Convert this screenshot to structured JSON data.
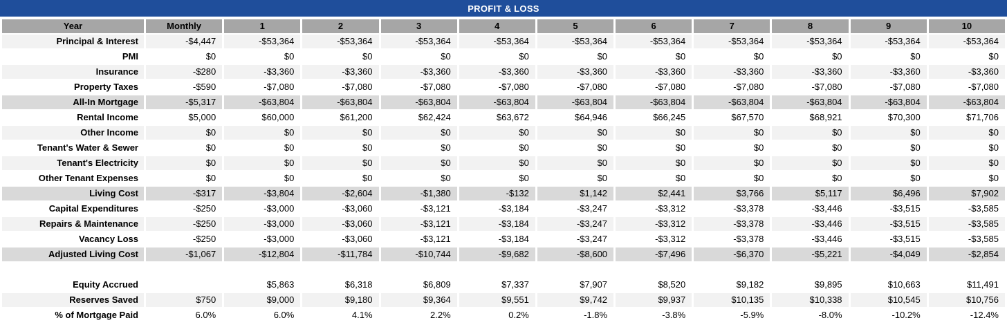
{
  "title": "PROFIT & LOSS",
  "colors": {
    "title_bg": "#1F4E9B",
    "title_text": "#FFFFFF",
    "header_bg": "#A6A6A6",
    "stripe_bg": "#F2F2F2",
    "summary_bg": "#D9D9D9",
    "text": "#000000"
  },
  "table": {
    "columns": [
      "Year",
      "Monthly",
      "1",
      "2",
      "3",
      "4",
      "5",
      "6",
      "7",
      "8",
      "9",
      "10"
    ],
    "rows": [
      {
        "label": "Principal & Interest",
        "style": "light",
        "values": [
          "-$4,447",
          "-$53,364",
          "-$53,364",
          "-$53,364",
          "-$53,364",
          "-$53,364",
          "-$53,364",
          "-$53,364",
          "-$53,364",
          "-$53,364",
          "-$53,364"
        ]
      },
      {
        "label": "PMI",
        "style": "white",
        "values": [
          "$0",
          "$0",
          "$0",
          "$0",
          "$0",
          "$0",
          "$0",
          "$0",
          "$0",
          "$0",
          "$0"
        ]
      },
      {
        "label": "Insurance",
        "style": "light",
        "values": [
          "-$280",
          "-$3,360",
          "-$3,360",
          "-$3,360",
          "-$3,360",
          "-$3,360",
          "-$3,360",
          "-$3,360",
          "-$3,360",
          "-$3,360",
          "-$3,360"
        ]
      },
      {
        "label": "Property Taxes",
        "style": "white",
        "values": [
          "-$590",
          "-$7,080",
          "-$7,080",
          "-$7,080",
          "-$7,080",
          "-$7,080",
          "-$7,080",
          "-$7,080",
          "-$7,080",
          "-$7,080",
          "-$7,080"
        ]
      },
      {
        "label": "All-In Mortgage",
        "style": "dark",
        "values": [
          "-$5,317",
          "-$63,804",
          "-$63,804",
          "-$63,804",
          "-$63,804",
          "-$63,804",
          "-$63,804",
          "-$63,804",
          "-$63,804",
          "-$63,804",
          "-$63,804"
        ]
      },
      {
        "label": "Rental Income",
        "style": "white",
        "values": [
          "$5,000",
          "$60,000",
          "$61,200",
          "$62,424",
          "$63,672",
          "$64,946",
          "$66,245",
          "$67,570",
          "$68,921",
          "$70,300",
          "$71,706"
        ]
      },
      {
        "label": "Other Income",
        "style": "light",
        "values": [
          "$0",
          "$0",
          "$0",
          "$0",
          "$0",
          "$0",
          "$0",
          "$0",
          "$0",
          "$0",
          "$0"
        ]
      },
      {
        "label": "Tenant's Water & Sewer",
        "style": "white",
        "values": [
          "$0",
          "$0",
          "$0",
          "$0",
          "$0",
          "$0",
          "$0",
          "$0",
          "$0",
          "$0",
          "$0"
        ]
      },
      {
        "label": "Tenant's Electricity",
        "style": "light",
        "values": [
          "$0",
          "$0",
          "$0",
          "$0",
          "$0",
          "$0",
          "$0",
          "$0",
          "$0",
          "$0",
          "$0"
        ]
      },
      {
        "label": "Other Tenant Expenses",
        "style": "white",
        "values": [
          "$0",
          "$0",
          "$0",
          "$0",
          "$0",
          "$0",
          "$0",
          "$0",
          "$0",
          "$0",
          "$0"
        ]
      },
      {
        "label": "Living Cost",
        "style": "dark",
        "values": [
          "-$317",
          "-$3,804",
          "-$2,604",
          "-$1,380",
          "-$132",
          "$1,142",
          "$2,441",
          "$3,766",
          "$5,117",
          "$6,496",
          "$7,902"
        ]
      },
      {
        "label": "Capital Expenditures",
        "style": "white",
        "values": [
          "-$250",
          "-$3,000",
          "-$3,060",
          "-$3,121",
          "-$3,184",
          "-$3,247",
          "-$3,312",
          "-$3,378",
          "-$3,446",
          "-$3,515",
          "-$3,585"
        ]
      },
      {
        "label": "Repairs & Maintenance",
        "style": "light",
        "values": [
          "-$250",
          "-$3,000",
          "-$3,060",
          "-$3,121",
          "-$3,184",
          "-$3,247",
          "-$3,312",
          "-$3,378",
          "-$3,446",
          "-$3,515",
          "-$3,585"
        ]
      },
      {
        "label": "Vacancy Loss",
        "style": "white",
        "values": [
          "-$250",
          "-$3,000",
          "-$3,060",
          "-$3,121",
          "-$3,184",
          "-$3,247",
          "-$3,312",
          "-$3,378",
          "-$3,446",
          "-$3,515",
          "-$3,585"
        ]
      },
      {
        "label": "Adjusted Living Cost",
        "style": "dark",
        "values": [
          "-$1,067",
          "-$12,804",
          "-$11,784",
          "-$10,744",
          "-$9,682",
          "-$8,600",
          "-$7,496",
          "-$6,370",
          "-$5,221",
          "-$4,049",
          "-$2,854"
        ]
      },
      {
        "label": "",
        "style": "spacer",
        "values": [
          "",
          "",
          "",
          "",
          "",
          "",
          "",
          "",
          "",
          "",
          ""
        ]
      },
      {
        "label": "Equity Accrued",
        "style": "white",
        "values": [
          "",
          "$5,863",
          "$6,318",
          "$6,809",
          "$7,337",
          "$7,907",
          "$8,520",
          "$9,182",
          "$9,895",
          "$10,663",
          "$11,491"
        ]
      },
      {
        "label": "Reserves Saved",
        "style": "light",
        "values": [
          "$750",
          "$9,000",
          "$9,180",
          "$9,364",
          "$9,551",
          "$9,742",
          "$9,937",
          "$10,135",
          "$10,338",
          "$10,545",
          "$10,756"
        ]
      },
      {
        "label": "% of Mortgage Paid",
        "style": "white",
        "values": [
          "6.0%",
          "6.0%",
          "4.1%",
          "2.2%",
          "0.2%",
          "-1.8%",
          "-3.8%",
          "-5.9%",
          "-8.0%",
          "-10.2%",
          "-12.4%"
        ]
      }
    ]
  }
}
